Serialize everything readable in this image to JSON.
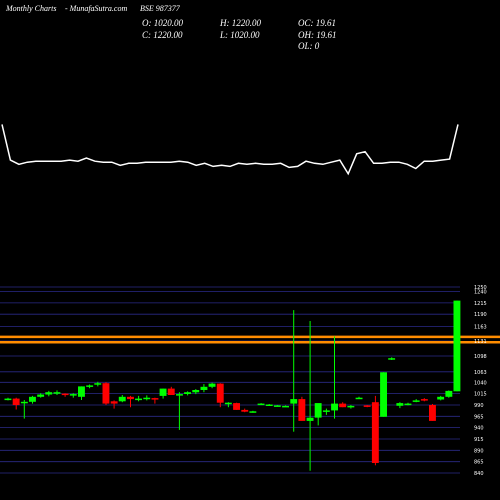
{
  "header": {
    "chart_type_label": "Monthly Charts",
    "site_label": "- MunafaSutra.com",
    "symbol_label": "BSE 987377"
  },
  "ohlc": {
    "open": "O: 1020.00",
    "high": "H: 1220.00",
    "low": "L: 1020.00",
    "close": "C: 1220.00",
    "oc": "OC: 19.61",
    "oh": "OH: 19.61",
    "ol": "OL: 0"
  },
  "chart_data": [
    {
      "type": "line",
      "x": [
        1,
        2,
        3,
        4,
        5,
        6,
        7,
        8,
        9,
        10,
        11,
        12,
        13,
        14,
        15,
        16,
        17,
        18,
        19,
        20,
        21,
        22,
        23,
        24,
        25,
        26,
        27,
        28,
        29,
        30,
        31,
        32,
        33,
        34,
        35,
        36,
        37,
        38,
        39,
        40,
        41,
        42,
        43,
        44,
        45,
        46,
        47,
        48,
        49,
        50,
        51,
        52,
        53,
        54,
        55
      ],
      "values": [
        72,
        38,
        34,
        36,
        37,
        37,
        37,
        37,
        38,
        37,
        40,
        37,
        36,
        36,
        33,
        35,
        35,
        36,
        36,
        36,
        36,
        37,
        36,
        33,
        35,
        32,
        33,
        32,
        35,
        34,
        35,
        34,
        34,
        35,
        31,
        32,
        37,
        35,
        34,
        36,
        38,
        25,
        44,
        46,
        35,
        35,
        36,
        36,
        34,
        30,
        37,
        37,
        38,
        39,
        72
      ],
      "color": "#ffffff"
    },
    {
      "type": "candlestick",
      "ylim": [
        840,
        1250
      ],
      "y_ticks": [
        "1250",
        "1240",
        "1215",
        "1190",
        "1163",
        "1131",
        "1098",
        "1063",
        "1040",
        "1015",
        "990",
        "965",
        "940",
        "915",
        "890",
        "865",
        "840"
      ],
      "tick_values": [
        1250,
        1240,
        1215,
        1190,
        1163,
        1131,
        1098,
        1063,
        1040,
        1015,
        990,
        965,
        940,
        915,
        890,
        865,
        840
      ],
      "horizontal_lines": [
        {
          "value": 1140,
          "color": "#ff8c00"
        },
        {
          "value": 1128,
          "color": "#ff8c00"
        }
      ],
      "candles": [
        {
          "open": 1004,
          "high": 1006,
          "low": 1000,
          "close": 1003,
          "color": "green"
        },
        {
          "open": 1004,
          "high": 1006,
          "low": 980,
          "close": 990,
          "color": "red"
        },
        {
          "open": 995,
          "high": 1001,
          "low": 960,
          "close": 997,
          "color": "green"
        },
        {
          "open": 997,
          "high": 1010,
          "low": 993,
          "close": 1008,
          "color": "green"
        },
        {
          "open": 1008,
          "high": 1016,
          "low": 1006,
          "close": 1013,
          "color": "green"
        },
        {
          "open": 1013,
          "high": 1021,
          "low": 1009,
          "close": 1018,
          "color": "green"
        },
        {
          "open": 1018,
          "high": 1022,
          "low": 1012,
          "close": 1017,
          "color": "green"
        },
        {
          "open": 1015,
          "high": 1016,
          "low": 1008,
          "close": 1012,
          "color": "red"
        },
        {
          "open": 1012,
          "high": 1016,
          "low": 1006,
          "close": 1014,
          "color": "green"
        },
        {
          "open": 1008,
          "high": 1031,
          "low": 1001,
          "close": 1031,
          "color": "green"
        },
        {
          "open": 1031,
          "high": 1035,
          "low": 1027,
          "close": 1033,
          "color": "green"
        },
        {
          "open": 1036,
          "high": 1041,
          "low": 1031,
          "close": 1038,
          "color": "green"
        },
        {
          "open": 1038,
          "high": 1040,
          "low": 990,
          "close": 993,
          "color": "red"
        },
        {
          "open": 993,
          "high": 1000,
          "low": 982,
          "close": 998,
          "color": "red"
        },
        {
          "open": 998,
          "high": 1012,
          "low": 996,
          "close": 1008,
          "color": "green"
        },
        {
          "open": 1008,
          "high": 1010,
          "low": 985,
          "close": 1003,
          "color": "red"
        },
        {
          "open": 1003,
          "high": 1010,
          "low": 998,
          "close": 1004,
          "color": "green"
        },
        {
          "open": 1004,
          "high": 1011,
          "low": 1000,
          "close": 1006,
          "color": "green"
        },
        {
          "open": 1005,
          "high": 1006,
          "low": 993,
          "close": 1002,
          "color": "red"
        },
        {
          "open": 1010,
          "high": 1026,
          "low": 1004,
          "close": 1026,
          "color": "green"
        },
        {
          "open": 1026,
          "high": 1030,
          "low": 1012,
          "close": 1012,
          "color": "red"
        },
        {
          "open": 1012,
          "high": 1018,
          "low": 935,
          "close": 1014,
          "color": "green"
        },
        {
          "open": 1014,
          "high": 1020,
          "low": 1011,
          "close": 1018,
          "color": "green"
        },
        {
          "open": 1018,
          "high": 1025,
          "low": 1014,
          "close": 1023,
          "color": "green"
        },
        {
          "open": 1023,
          "high": 1036,
          "low": 1018,
          "close": 1030,
          "color": "green"
        },
        {
          "open": 1030,
          "high": 1039,
          "low": 1027,
          "close": 1037,
          "color": "green"
        },
        {
          "open": 1037,
          "high": 1038,
          "low": 985,
          "close": 995,
          "color": "red"
        },
        {
          "open": 995,
          "high": 996,
          "low": 985,
          "close": 993,
          "color": "green"
        },
        {
          "open": 994,
          "high": 995,
          "low": 979,
          "close": 979,
          "color": "red"
        },
        {
          "open": 979,
          "high": 982,
          "low": 974,
          "close": 975,
          "color": "red"
        },
        {
          "open": 975,
          "high": 977,
          "low": 973,
          "close": 976,
          "color": "green"
        },
        {
          "open": 993,
          "high": 994,
          "low": 990,
          "close": 993,
          "color": "green"
        },
        {
          "open": 991,
          "high": 992,
          "low": 990,
          "close": 991,
          "color": "green"
        },
        {
          "open": 989,
          "high": 990,
          "low": 987,
          "close": 988,
          "color": "green"
        },
        {
          "open": 988,
          "high": 989,
          "low": 986,
          "close": 988,
          "color": "green"
        },
        {
          "open": 993,
          "high": 1199,
          "low": 931,
          "close": 1003,
          "color": "green"
        },
        {
          "open": 1003,
          "high": 1008,
          "low": 955,
          "close": 955,
          "color": "red"
        },
        {
          "open": 955,
          "high": 1175,
          "low": 845,
          "close": 962,
          "color": "green"
        },
        {
          "open": 962,
          "high": 990,
          "low": 945,
          "close": 994,
          "color": "green"
        },
        {
          "open": 975,
          "high": 982,
          "low": 968,
          "close": 978,
          "color": "green"
        },
        {
          "open": 978,
          "high": 1141,
          "low": 960,
          "close": 993,
          "color": "green"
        },
        {
          "open": 993,
          "high": 996,
          "low": 985,
          "close": 985,
          "color": "red"
        },
        {
          "open": 986,
          "high": 990,
          "low": 982,
          "close": 988,
          "color": "green"
        },
        {
          "open": 1006,
          "high": 1008,
          "low": 1004,
          "close": 1006,
          "color": "green"
        },
        {
          "open": 989,
          "high": 990,
          "low": 985,
          "close": 986,
          "color": "red"
        },
        {
          "open": 996,
          "high": 1010,
          "low": 857,
          "close": 862,
          "color": "red"
        },
        {
          "open": 964,
          "high": 1062,
          "low": 964,
          "close": 1062,
          "color": "green"
        },
        {
          "open": 1093,
          "high": 1095,
          "low": 1089,
          "close": 1092,
          "color": "green"
        },
        {
          "open": 994,
          "high": 996,
          "low": 983,
          "close": 988,
          "color": "green"
        },
        {
          "open": 992,
          "high": 995,
          "low": 989,
          "close": 993,
          "color": "green"
        },
        {
          "open": 1000,
          "high": 1003,
          "low": 996,
          "close": 1000,
          "color": "green"
        },
        {
          "open": 1003,
          "high": 1005,
          "low": 998,
          "close": 1003,
          "color": "red"
        },
        {
          "open": 990,
          "high": 992,
          "low": 955,
          "close": 955,
          "color": "red"
        },
        {
          "open": 1002,
          "high": 1010,
          "low": 1000,
          "close": 1008,
          "color": "green"
        },
        {
          "open": 1008,
          "high": 1022,
          "low": 1006,
          "close": 1021,
          "color": "green"
        },
        {
          "open": 1020,
          "high": 1220,
          "low": 1020,
          "close": 1220,
          "color": "green"
        }
      ]
    }
  ]
}
